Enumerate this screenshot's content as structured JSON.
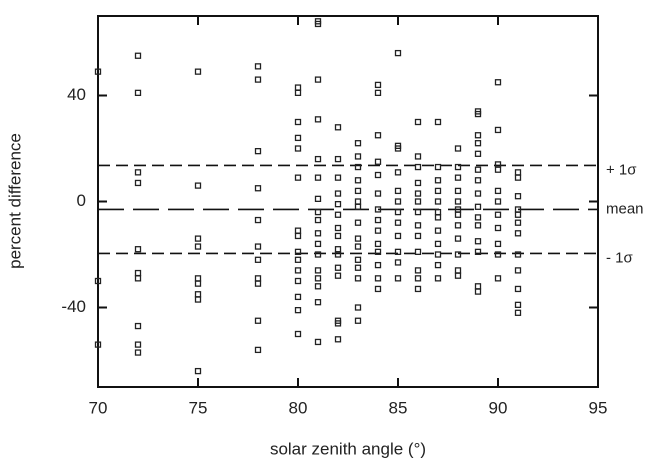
{
  "chart_data": {
    "type": "scatter",
    "x_label": "solar zenith angle (°)",
    "y_label": "percent difference",
    "xlim": [
      70,
      95
    ],
    "ylim": [
      -70,
      70
    ],
    "xticks": [
      70,
      75,
      80,
      85,
      90,
      95
    ],
    "yticks": [
      -40,
      0,
      40
    ],
    "reference_lines": [
      {
        "label": "+ 1σ",
        "value": 13.6
      },
      {
        "label": "mean",
        "value": -3
      },
      {
        "label": "- 1σ",
        "value": -19.6
      }
    ],
    "x": [
      70,
      70,
      70,
      72,
      72,
      72,
      72,
      72,
      72,
      72,
      72,
      72,
      72,
      75,
      75,
      75,
      75,
      75,
      75,
      75,
      75,
      75,
      78,
      78,
      78,
      78,
      78,
      78,
      78,
      78,
      78,
      78,
      78,
      80,
      80,
      80,
      80,
      80,
      80,
      80,
      80,
      80,
      80,
      80,
      80,
      80,
      80,
      80,
      81,
      81,
      81,
      81,
      81,
      81,
      81,
      81,
      81,
      81,
      81,
      81,
      81,
      81,
      81,
      81,
      81,
      82,
      82,
      82,
      82,
      82,
      82,
      82,
      82,
      82,
      82,
      82,
      82,
      82,
      82,
      82,
      83,
      83,
      83,
      83,
      83,
      83,
      83,
      83,
      83,
      83,
      83,
      83,
      83,
      83,
      83,
      84,
      84,
      84,
      84,
      84,
      84,
      84,
      84,
      84,
      84,
      84,
      84,
      84,
      84,
      85,
      85,
      85,
      85,
      85,
      85,
      85,
      85,
      85,
      85,
      85,
      85,
      86,
      86,
      86,
      86,
      86,
      86,
      86,
      86,
      86,
      86,
      86,
      86,
      86,
      87,
      87,
      87,
      87,
      87,
      87,
      87,
      87,
      87,
      87,
      87,
      87,
      88,
      88,
      88,
      88,
      88,
      88,
      88,
      88,
      88,
      88,
      88,
      88,
      89,
      89,
      89,
      89,
      89,
      89,
      89,
      89,
      89,
      89,
      89,
      89,
      89,
      89,
      89,
      90,
      90,
      90,
      90,
      90,
      90,
      90,
      90,
      90,
      90,
      90,
      91,
      91,
      91,
      91,
      91,
      91,
      91,
      91,
      91,
      91,
      91,
      91
    ],
    "series": [
      {
        "color": "#222222",
        "values": [
          49,
          -30,
          -54,
          55,
          41,
          11,
          7,
          -18,
          -27,
          -29,
          -47,
          -54,
          -57,
          49,
          6,
          -14,
          -17,
          -29,
          -31,
          -35,
          -37,
          -64,
          51,
          46,
          19,
          5,
          -7,
          -17,
          -22,
          -29,
          -31,
          -45,
          -56,
          43,
          41,
          30,
          24,
          20,
          9,
          -11,
          -13,
          -19,
          -22,
          -26,
          -30,
          -36,
          -41,
          -50,
          67,
          68,
          46,
          31,
          16,
          9,
          1,
          -4,
          -7,
          -12,
          -16,
          -20,
          -26,
          -29,
          -32,
          -38,
          -53,
          28,
          16,
          9,
          3,
          -1,
          -5,
          -10,
          -13,
          -18,
          -20,
          -25,
          -28,
          -45,
          -46,
          -52,
          22,
          17,
          13,
          8,
          4,
          0,
          -2,
          -8,
          -14,
          -17,
          -22,
          -25,
          -29,
          -40,
          -45,
          44,
          41,
          25,
          15,
          10,
          3,
          -3,
          -7,
          -11,
          -16,
          -19,
          -24,
          -29,
          -33,
          56,
          21,
          20,
          11,
          4,
          0,
          -4,
          -8,
          -13,
          -19,
          -23,
          -29,
          30,
          17,
          13,
          7,
          3,
          0,
          -4,
          -9,
          -13,
          -19,
          -26,
          -29,
          -33,
          30,
          13,
          8,
          4,
          0,
          -4,
          -6,
          -11,
          -16,
          -20,
          -24,
          -29,
          20,
          13,
          9,
          4,
          0,
          -3,
          -5,
          -9,
          -14,
          -20,
          -26,
          -28,
          33,
          34,
          25,
          22,
          18,
          12,
          8,
          3,
          -2,
          -6,
          -9,
          -15,
          -19,
          -32,
          -34,
          45,
          27,
          14,
          12,
          4,
          0,
          -5,
          -10,
          -16,
          -20,
          -29,
          11,
          9,
          2,
          -3,
          -5,
          -8,
          -12,
          -20,
          -26,
          -33,
          -39,
          -42
        ]
      }
    ]
  }
}
